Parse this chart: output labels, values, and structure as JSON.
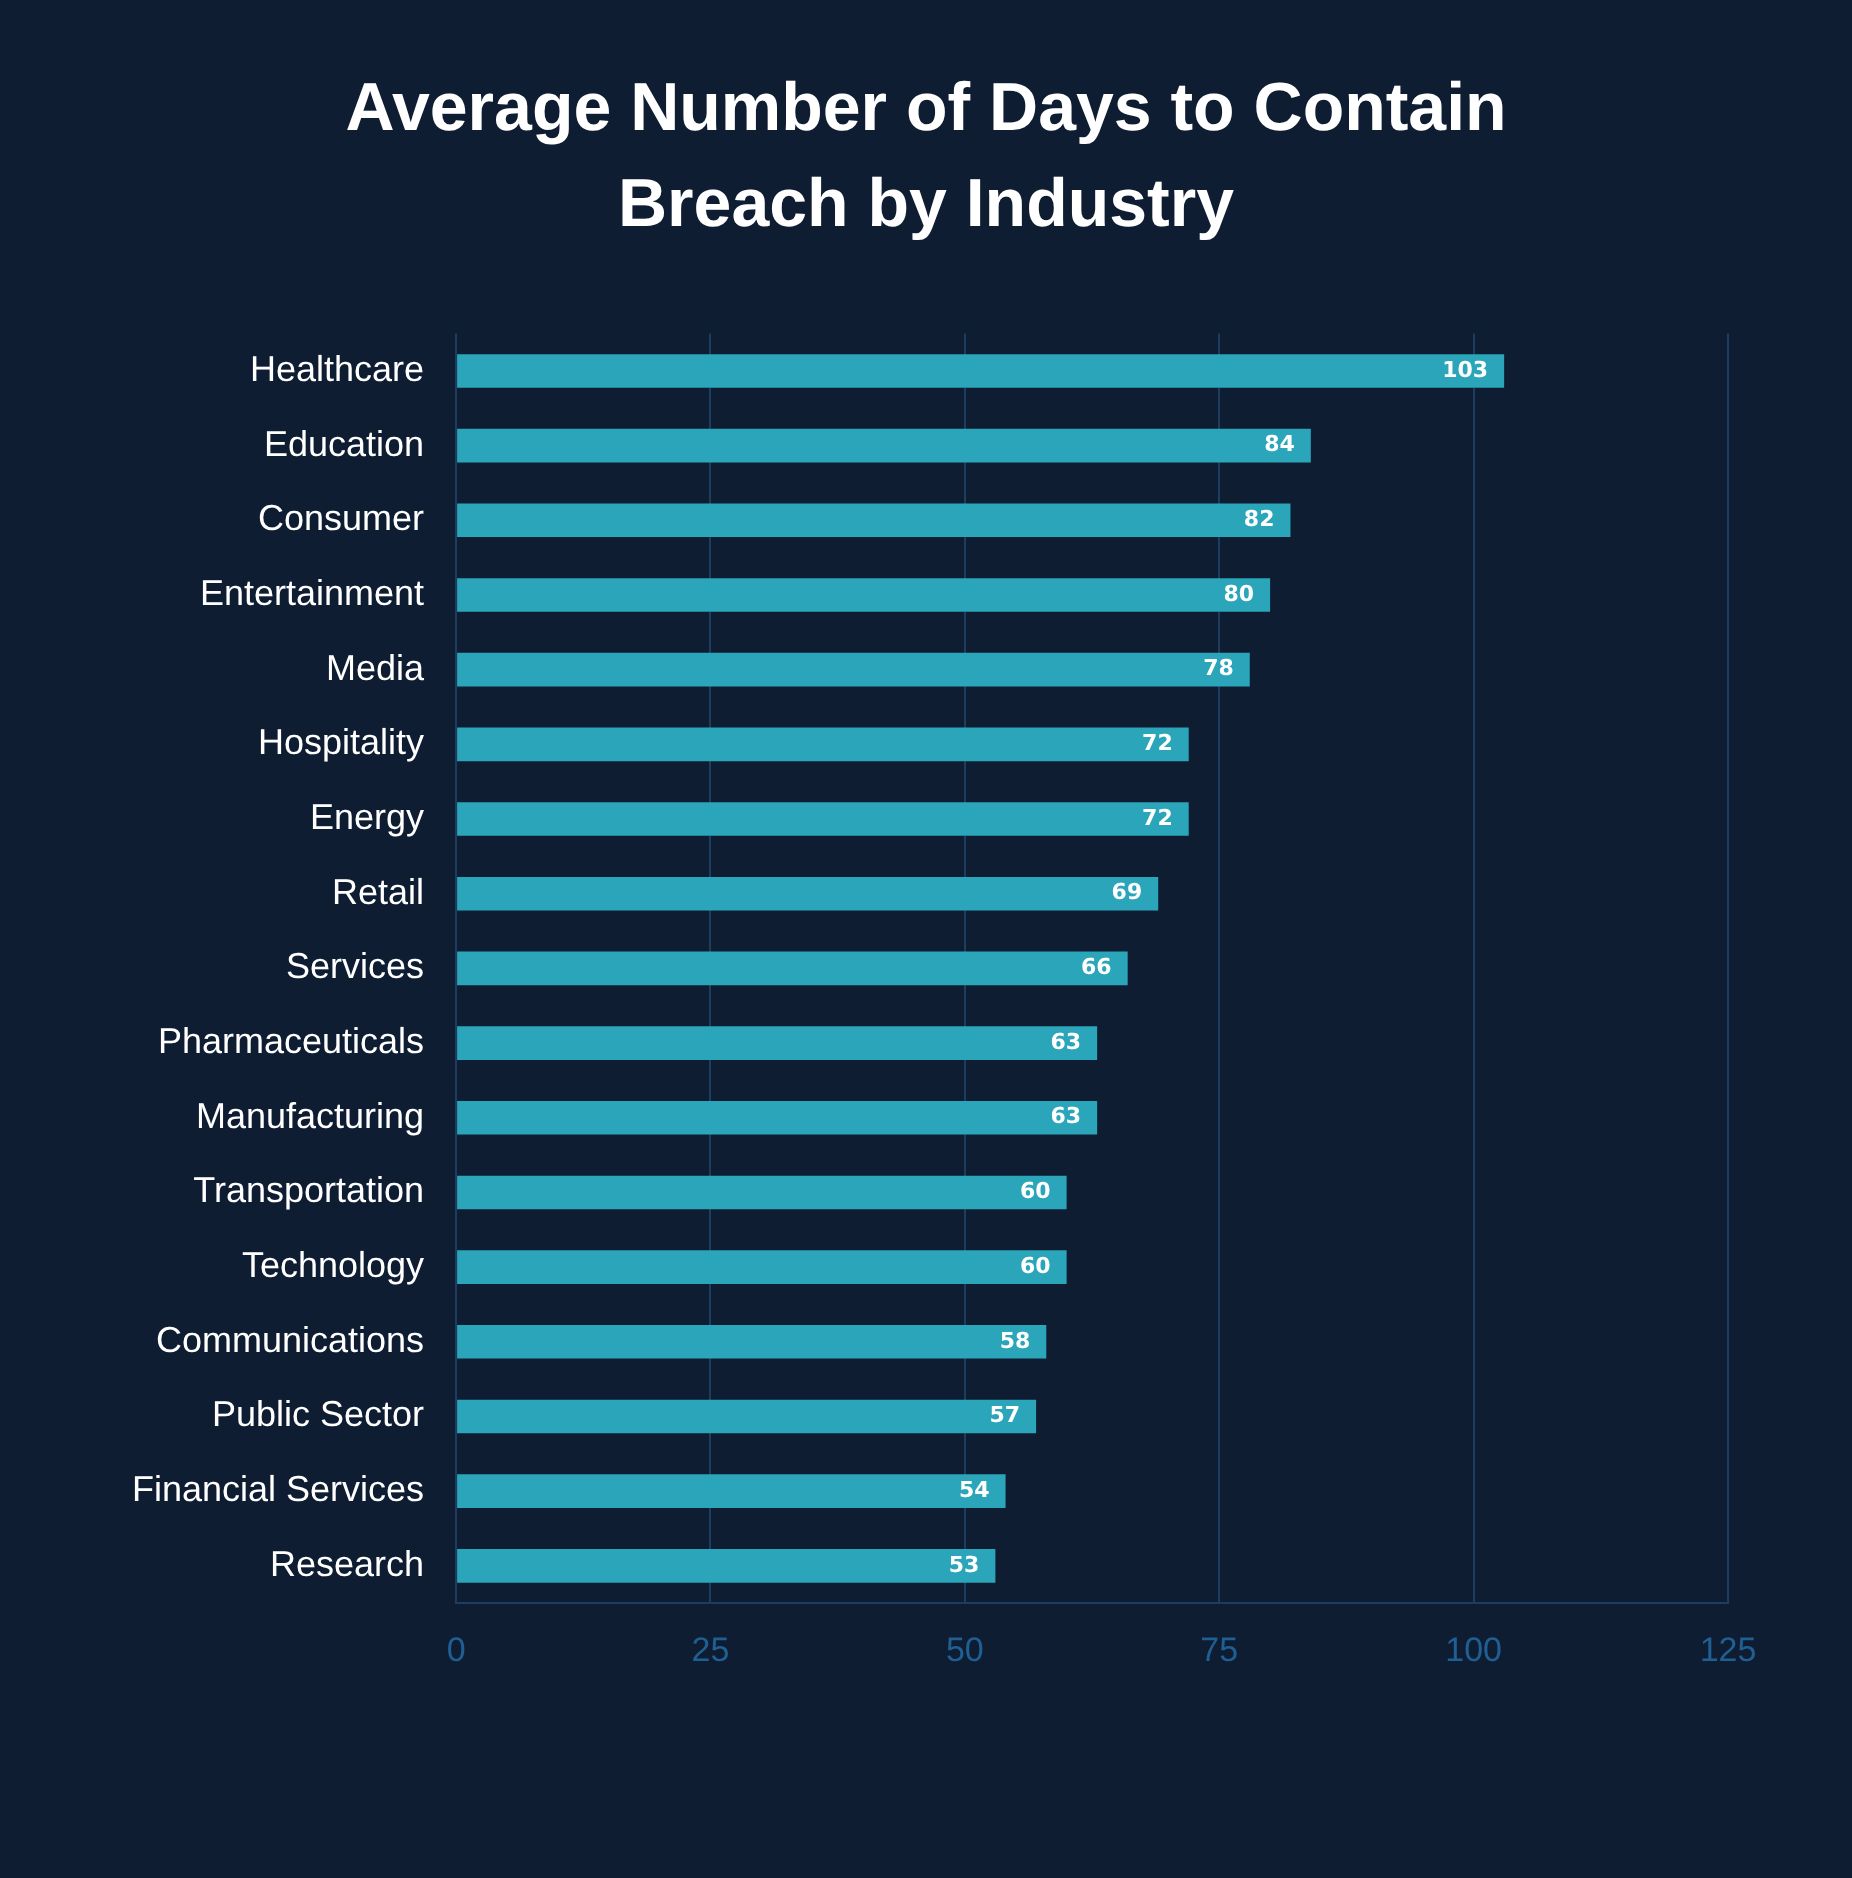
{
  "chart_data": {
    "type": "bar",
    "orientation": "horizontal",
    "title": "Average Number of Days to Contain Breach by Industry",
    "categories": [
      "Healthcare",
      "Education",
      "Consumer",
      "Entertainment",
      "Media",
      "Hospitality",
      "Energy",
      "Retail",
      "Services",
      "Pharmaceuticals",
      "Manufacturing",
      "Transportation",
      "Technology",
      "Communications",
      "Public Sector",
      "Financial Services",
      "Research"
    ],
    "values": [
      103,
      84,
      82,
      80,
      78,
      72,
      72,
      69,
      66,
      63,
      63,
      60,
      60,
      58,
      57,
      54,
      53
    ],
    "color": "#2aa5b9",
    "xlim": [
      0,
      125
    ],
    "xticks": [
      0,
      25,
      50,
      75,
      100,
      125
    ],
    "grid": "x",
    "legend": false,
    "data_labels": true
  }
}
